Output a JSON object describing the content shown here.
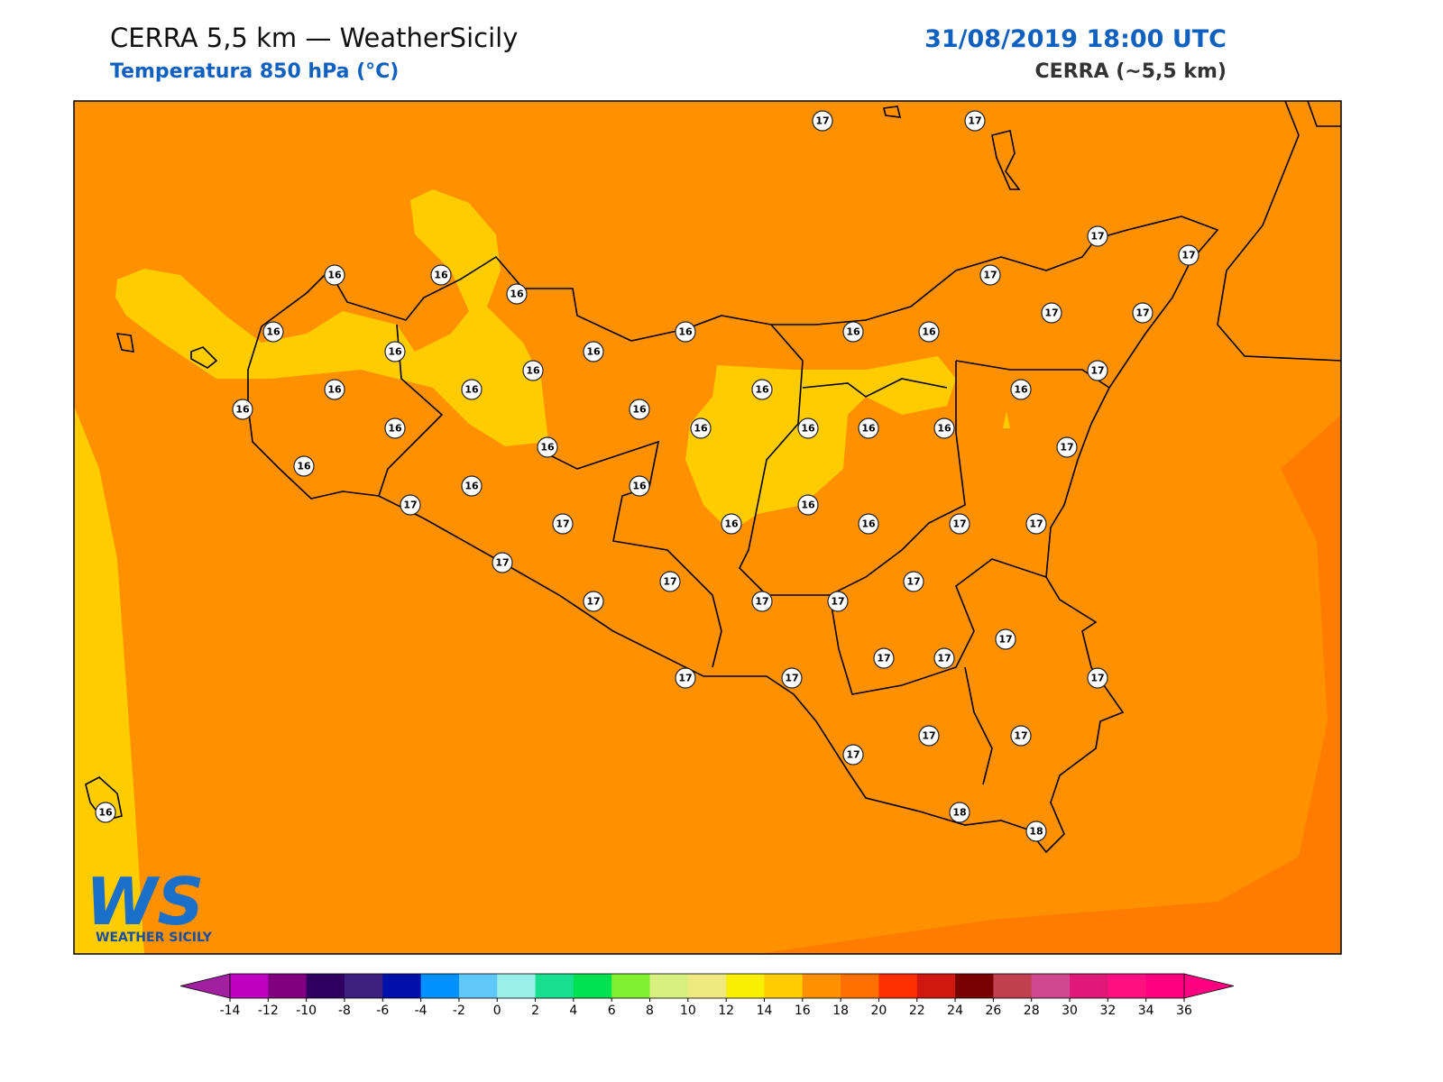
{
  "header": {
    "title": "CERRA 5,5 km — WeatherSicily",
    "subtitle": "Temperatura 850 hPa (°C)",
    "datetime": "31/08/2019 18:00 UTC",
    "model": "CERRA (~5,5 km)"
  },
  "logo": {
    "mark": "WS",
    "name": "WEATHER SICILY"
  },
  "stations": [
    17,
    17,
    17,
    17,
    16,
    16,
    16,
    17,
    16,
    16,
    16,
    16,
    17,
    17,
    16,
    16,
    16,
    17,
    16,
    16,
    16,
    16,
    16,
    16,
    16,
    16,
    16,
    16,
    16,
    17,
    16,
    16,
    16,
    16,
    17,
    16,
    17,
    16,
    16,
    17,
    17,
    17,
    17,
    17,
    17,
    17,
    17,
    17,
    17,
    17,
    17,
    17,
    17,
    17,
    17,
    17,
    18,
    18,
    16
  ],
  "colorbar": {
    "ticks": [
      -14,
      -12,
      -10,
      -8,
      -6,
      -4,
      -2,
      0,
      2,
      4,
      6,
      8,
      10,
      12,
      14,
      16,
      18,
      20,
      22,
      24,
      26,
      28,
      30,
      32,
      34,
      36
    ],
    "colors": [
      "#c000c0",
      "#800080",
      "#300060",
      "#3c2080",
      "#0010a8",
      "#0090ff",
      "#60c8f8",
      "#98f0e8",
      "#18e090",
      "#00e050",
      "#80f030",
      "#d8f080",
      "#f0e880",
      "#f8f000",
      "#ffcc00",
      "#ff9000",
      "#ff7000",
      "#ff3000",
      "#d01810",
      "#780000",
      "#c04050",
      "#d04890",
      "#e01878",
      "#ff1080",
      "#ff0080"
    ],
    "under": "#a020a0",
    "over": "#ff0080"
  }
}
